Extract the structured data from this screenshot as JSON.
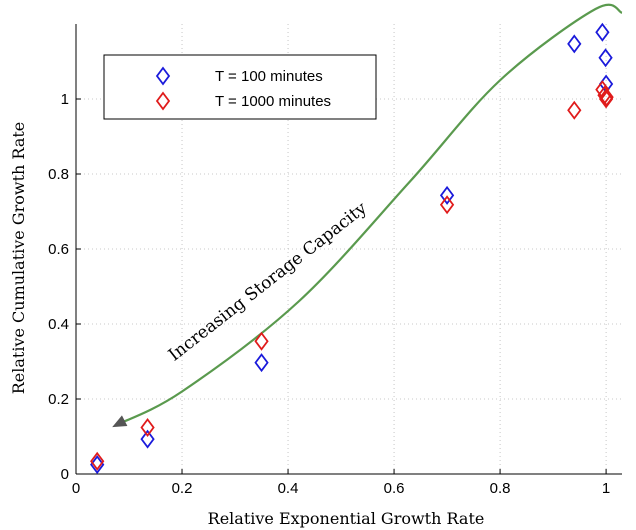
{
  "chart_data": {
    "type": "scatter",
    "xlabel": "Relative Exponential Growth Rate",
    "ylabel": "Relative Cumulative Growth Rate",
    "xlim": [
      0,
      1.03
    ],
    "ylim": [
      0,
      1.2
    ],
    "x_ticks": [
      0,
      0.2,
      0.4,
      0.6,
      0.8,
      1
    ],
    "x_tick_labels": [
      "0",
      "0.2",
      "0.4",
      "0.6",
      "0.8",
      "1"
    ],
    "y_ticks": [
      0,
      0.2,
      0.4,
      0.6,
      0.8,
      1
    ],
    "y_tick_labels": [
      "0",
      "0.2",
      "0.4",
      "0.6",
      "0.8",
      "1"
    ],
    "grid": true,
    "legend_position": "top-left",
    "marker": "diamond",
    "series": [
      {
        "name": "T = 100 minutes",
        "color": "#1a1adb",
        "points": [
          {
            "x": 0.04,
            "y": 0.025
          },
          {
            "x": 0.135,
            "y": 0.093
          },
          {
            "x": 0.35,
            "y": 0.297
          },
          {
            "x": 0.7,
            "y": 0.743
          },
          {
            "x": 0.94,
            "y": 1.147
          },
          {
            "x": 0.993,
            "y": 1.178
          },
          {
            "x": 0.999,
            "y": 1.11
          },
          {
            "x": 1.0,
            "y": 1.04
          }
        ]
      },
      {
        "name": "T = 1000 minutes",
        "color": "#e01b1b",
        "points": [
          {
            "x": 0.04,
            "y": 0.034
          },
          {
            "x": 0.135,
            "y": 0.124
          },
          {
            "x": 0.35,
            "y": 0.354
          },
          {
            "x": 0.7,
            "y": 0.718
          },
          {
            "x": 0.94,
            "y": 0.97
          },
          {
            "x": 0.993,
            "y": 1.025
          },
          {
            "x": 0.997,
            "y": 1.01
          },
          {
            "x": 1.0,
            "y": 1.0
          },
          {
            "x": 1.001,
            "y": 1.005
          }
        ]
      }
    ],
    "annotation": {
      "text": "Increasing Storage Capacity",
      "arrow_color": "#5a9a4e",
      "arrow_path": [
        [
          1.03,
          1.23
        ],
        [
          0.98,
          1.24
        ],
        [
          0.8,
          1.05
        ],
        [
          0.63,
          0.78
        ],
        [
          0.42,
          0.46
        ],
        [
          0.2,
          0.22
        ],
        [
          0.075,
          0.13
        ]
      ]
    }
  }
}
